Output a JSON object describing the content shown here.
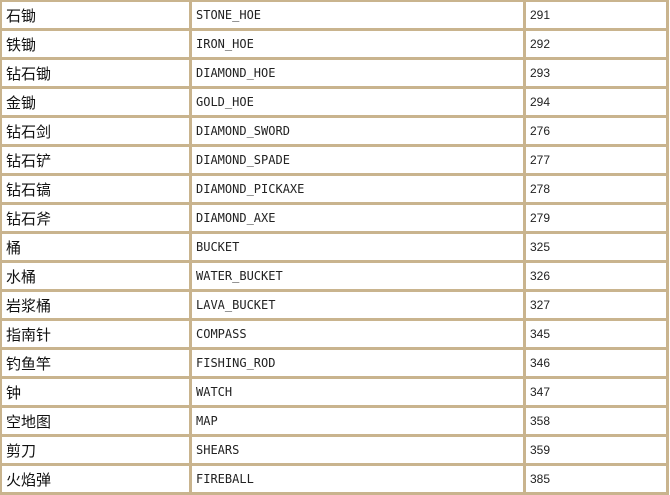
{
  "colors": {
    "border": "#c9b48e",
    "cell": "#ffffff"
  },
  "rows": [
    {
      "name": "石锄",
      "id_name": "STONE_HOE",
      "id": "291"
    },
    {
      "name": "铁锄",
      "id_name": "IRON_HOE",
      "id": "292"
    },
    {
      "name": "钻石锄",
      "id_name": "DIAMOND_HOE",
      "id": "293"
    },
    {
      "name": "金锄",
      "id_name": "GOLD_HOE",
      "id": "294"
    },
    {
      "name": "钻石剑",
      "id_name": "DIAMOND_SWORD",
      "id": "276"
    },
    {
      "name": "钻石铲",
      "id_name": "DIAMOND_SPADE",
      "id": "277"
    },
    {
      "name": "钻石镐",
      "id_name": "DIAMOND_PICKAXE",
      "id": "278"
    },
    {
      "name": "钻石斧",
      "id_name": "DIAMOND_AXE",
      "id": "279"
    },
    {
      "name": "桶",
      "id_name": "BUCKET",
      "id": "325"
    },
    {
      "name": "水桶",
      "id_name": "WATER_BUCKET",
      "id": "326"
    },
    {
      "name": "岩浆桶",
      "id_name": "LAVA_BUCKET",
      "id": "327"
    },
    {
      "name": "指南针",
      "id_name": "COMPASS",
      "id": "345"
    },
    {
      "name": "钓鱼竿",
      "id_name": "FISHING_ROD",
      "id": "346"
    },
    {
      "name": "钟",
      "id_name": "WATCH",
      "id": "347"
    },
    {
      "name": "空地图",
      "id_name": "MAP",
      "id": "358"
    },
    {
      "name": "剪刀",
      "id_name": "SHEARS",
      "id": "359"
    },
    {
      "name": "火焰弹",
      "id_name": "FIREBALL",
      "id": "385"
    }
  ]
}
